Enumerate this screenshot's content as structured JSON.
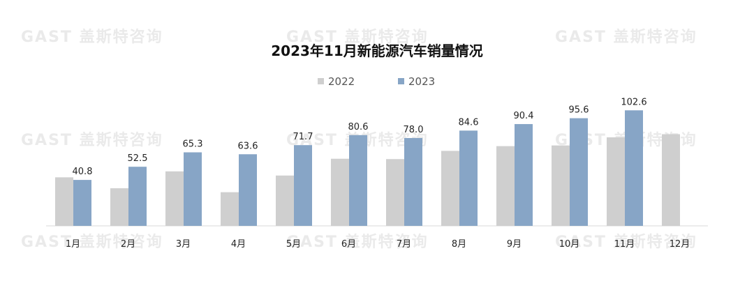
{
  "watermark": {
    "text": "GAST 盖斯特咨询"
  },
  "chart_data": {
    "type": "bar",
    "title": "2023年11月新能源汽车销量情况",
    "xlabel": "",
    "ylabel": "",
    "ylim": [
      0,
      130
    ],
    "grid": false,
    "legend_position": "top-center",
    "categories": [
      "1月",
      "2月",
      "3月",
      "4月",
      "5月",
      "6月",
      "7月",
      "8月",
      "9月",
      "10月",
      "11月",
      "12月"
    ],
    "series": [
      {
        "name": "2022",
        "color": "#cfcfcf",
        "values": [
          43.1,
          33.4,
          48.4,
          29.9,
          44.7,
          59.6,
          59.3,
          66.6,
          70.8,
          71.4,
          78.6,
          81.4
        ],
        "labels": [
          "",
          "",
          "",
          "",
          "",
          "",
          "",
          "",
          "",
          "",
          "",
          ""
        ]
      },
      {
        "name": "2023",
        "color": "#87a5c6",
        "values": [
          40.8,
          52.5,
          65.3,
          63.6,
          71.7,
          80.6,
          78.0,
          84.6,
          90.4,
          95.6,
          102.6,
          null
        ],
        "labels": [
          "40.8",
          "52.5",
          "65.3",
          "63.6",
          "71.7",
          "80.6",
          "78.0",
          "84.6",
          "90.4",
          "95.6",
          "102.6",
          ""
        ]
      }
    ]
  }
}
